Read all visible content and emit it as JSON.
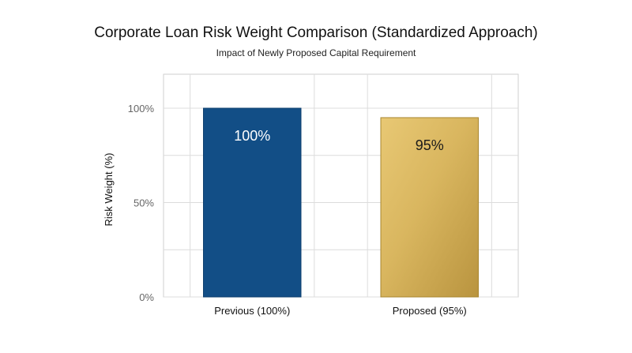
{
  "chart_data": {
    "type": "bar",
    "title": "Corporate Loan Risk Weight Comparison (Standardized Approach)",
    "subtitle": "Impact of Newly Proposed Capital Requirement",
    "xlabel": "",
    "ylabel": "Risk Weight (%)",
    "categories": [
      "Previous (100%)",
      "Proposed (95%)"
    ],
    "values": [
      100,
      95
    ],
    "data_labels": [
      "100%",
      "95%"
    ],
    "y_ticks": [
      0,
      50,
      100
    ],
    "y_tick_labels": [
      "0%",
      "50%",
      "100%"
    ],
    "ylim": [
      0,
      118
    ],
    "grid": true,
    "legend": "none",
    "colors": {
      "bars": [
        "#124e86",
        "#d8b259"
      ],
      "data_label_colors": [
        "#ffffff",
        "#1a1a1a"
      ],
      "grid": "#dcdcdc",
      "frame": "#cfcfcf"
    }
  }
}
